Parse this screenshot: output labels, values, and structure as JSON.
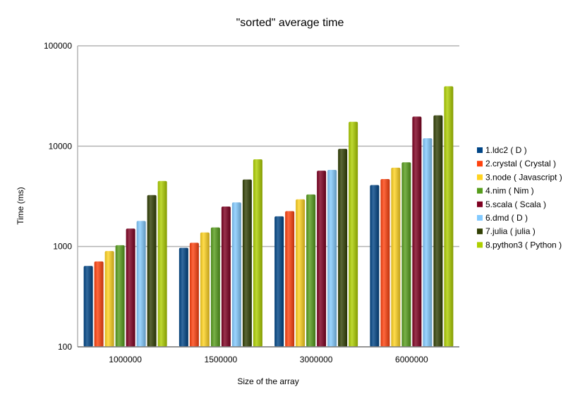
{
  "chart_data": {
    "type": "bar",
    "title": "\"sorted\" average time",
    "xlabel": "Size of the array",
    "ylabel": "Time (ms)",
    "y_scale": "log",
    "ylim": [
      100,
      100000
    ],
    "y_ticks": [
      100,
      1000,
      10000,
      100000
    ],
    "y_tick_labels": [
      "100",
      "1000",
      "10000",
      "100000"
    ],
    "grid": true,
    "legend_position": "right",
    "categories": [
      "1000000",
      "1500000",
      "3000000",
      "6000000"
    ],
    "series": [
      {
        "name": "1.ldc2 ( D )",
        "color": "#004586",
        "values": [
          640,
          970,
          2000,
          4100
        ]
      },
      {
        "name": "2.crystal ( Crystal )",
        "color": "#ff420e",
        "values": [
          710,
          1090,
          2250,
          4700
        ]
      },
      {
        "name": "3.node ( Javascript )",
        "color": "#ffd320",
        "values": [
          900,
          1380,
          2950,
          6100
        ]
      },
      {
        "name": "4.nim ( Nim )",
        "color": "#579d1c",
        "values": [
          1030,
          1550,
          3300,
          6900
        ]
      },
      {
        "name": "5.scala ( Scala )",
        "color": "#7e0021",
        "values": [
          1510,
          2500,
          5700,
          19700
        ]
      },
      {
        "name": "6.dmd ( D )",
        "color": "#83caff",
        "values": [
          1800,
          2750,
          5800,
          12000
        ]
      },
      {
        "name": "7.julia ( julia )",
        "color": "#314004",
        "values": [
          3250,
          4650,
          9400,
          20300
        ]
      },
      {
        "name": "8.python3 ( Python )",
        "color": "#aecf00",
        "values": [
          4500,
          7400,
          17500,
          39500
        ]
      }
    ]
  }
}
